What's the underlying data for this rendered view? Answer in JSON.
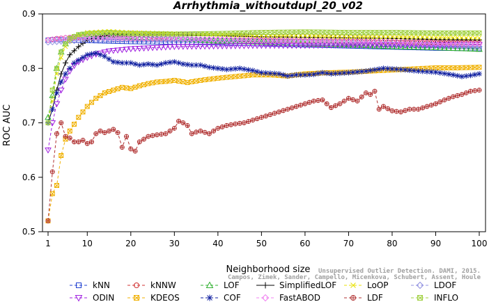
{
  "chart_data": {
    "type": "line",
    "title": "Arrhythmia_withoutdupl_20_v02",
    "xlabel": "Neighborhood size",
    "ylabel": "ROC AUC",
    "xlim": [
      1,
      100
    ],
    "ylim": [
      0.5,
      0.9
    ],
    "xticks": [
      1,
      10,
      20,
      30,
      40,
      50,
      60,
      70,
      80,
      90,
      100
    ],
    "yticks": [
      0.5,
      0.6,
      0.7,
      0.8,
      0.9
    ],
    "legend_position": "bottom",
    "series": [
      {
        "name": "kNN",
        "color": "#2040d0",
        "marker": "square",
        "dash": "4,3",
        "points": [
          [
            1,
            0.852
          ],
          [
            3,
            0.853
          ],
          [
            6,
            0.852
          ],
          [
            10,
            0.851
          ],
          [
            15,
            0.85
          ],
          [
            20,
            0.849
          ],
          [
            30,
            0.848
          ],
          [
            40,
            0.847
          ],
          [
            50,
            0.845
          ],
          [
            60,
            0.843
          ],
          [
            70,
            0.841
          ],
          [
            80,
            0.839
          ],
          [
            90,
            0.837
          ],
          [
            100,
            0.836
          ]
        ]
      },
      {
        "name": "kNNW",
        "color": "#d03030",
        "marker": "circle",
        "dash": "4,3",
        "points": [
          [
            1,
            0.852
          ],
          [
            3,
            0.855
          ],
          [
            6,
            0.857
          ],
          [
            10,
            0.857
          ],
          [
            15,
            0.856
          ],
          [
            20,
            0.855
          ],
          [
            30,
            0.854
          ],
          [
            40,
            0.853
          ],
          [
            50,
            0.852
          ],
          [
            60,
            0.851
          ],
          [
            70,
            0.85
          ],
          [
            80,
            0.849
          ],
          [
            90,
            0.848
          ],
          [
            100,
            0.847
          ]
        ]
      },
      {
        "name": "LOF",
        "color": "#30b030",
        "marker": "triangle",
        "dash": "4,3",
        "points": [
          [
            1,
            0.71
          ],
          [
            2,
            0.75
          ],
          [
            3,
            0.8
          ],
          [
            4,
            0.83
          ],
          [
            5,
            0.845
          ],
          [
            6,
            0.855
          ],
          [
            8,
            0.86
          ],
          [
            10,
            0.862
          ],
          [
            15,
            0.862
          ],
          [
            20,
            0.858
          ],
          [
            30,
            0.855
          ],
          [
            40,
            0.85
          ],
          [
            50,
            0.848
          ],
          [
            60,
            0.845
          ],
          [
            70,
            0.843
          ],
          [
            80,
            0.84
          ],
          [
            90,
            0.838
          ],
          [
            100,
            0.835
          ]
        ]
      },
      {
        "name": "SimplifiedLOF",
        "color": "#000000",
        "marker": "plus",
        "dash": "0",
        "points": [
          [
            1,
            0.7
          ],
          [
            2,
            0.725
          ],
          [
            3,
            0.76
          ],
          [
            4,
            0.79
          ],
          [
            5,
            0.81
          ],
          [
            6,
            0.825
          ],
          [
            8,
            0.84
          ],
          [
            10,
            0.852
          ],
          [
            15,
            0.862
          ],
          [
            20,
            0.864
          ],
          [
            30,
            0.862
          ],
          [
            40,
            0.86
          ],
          [
            50,
            0.858
          ],
          [
            60,
            0.857
          ],
          [
            70,
            0.856
          ],
          [
            80,
            0.855
          ],
          [
            90,
            0.853
          ],
          [
            100,
            0.852
          ]
        ]
      },
      {
        "name": "LoOP",
        "color": "#e8e000",
        "marker": "x",
        "dash": "4,3",
        "points": [
          [
            1,
            0.7
          ],
          [
            2,
            0.74
          ],
          [
            3,
            0.79
          ],
          [
            4,
            0.82
          ],
          [
            5,
            0.84
          ],
          [
            6,
            0.85
          ],
          [
            8,
            0.86
          ],
          [
            10,
            0.866
          ],
          [
            15,
            0.868
          ],
          [
            20,
            0.866
          ],
          [
            30,
            0.864
          ],
          [
            40,
            0.862
          ],
          [
            50,
            0.86
          ],
          [
            60,
            0.86
          ],
          [
            70,
            0.858
          ],
          [
            80,
            0.858
          ],
          [
            90,
            0.857
          ],
          [
            100,
            0.856
          ]
        ]
      },
      {
        "name": "LDOF",
        "color": "#9090e0",
        "marker": "diamond",
        "dash": "4,3",
        "points": [
          [
            1,
            0.848
          ],
          [
            5,
            0.85
          ],
          [
            10,
            0.852
          ],
          [
            20,
            0.853
          ],
          [
            30,
            0.853
          ],
          [
            40,
            0.852
          ],
          [
            50,
            0.85
          ],
          [
            60,
            0.848
          ],
          [
            70,
            0.846
          ],
          [
            80,
            0.844
          ],
          [
            90,
            0.842
          ],
          [
            100,
            0.84
          ]
        ]
      },
      {
        "name": "ODIN",
        "color": "#a020e0",
        "marker": "triangle-down",
        "dash": "4,3",
        "points": [
          [
            1,
            0.65
          ],
          [
            2,
            0.7
          ],
          [
            3,
            0.735
          ],
          [
            4,
            0.76
          ],
          [
            5,
            0.78
          ],
          [
            6,
            0.795
          ],
          [
            7,
            0.805
          ],
          [
            8,
            0.812
          ],
          [
            10,
            0.82
          ],
          [
            12,
            0.826
          ],
          [
            15,
            0.832
          ],
          [
            20,
            0.836
          ],
          [
            25,
            0.838
          ],
          [
            30,
            0.84
          ],
          [
            40,
            0.841
          ],
          [
            50,
            0.842
          ],
          [
            60,
            0.842
          ],
          [
            70,
            0.843
          ],
          [
            80,
            0.843
          ],
          [
            90,
            0.843
          ],
          [
            100,
            0.844
          ]
        ]
      },
      {
        "name": "KDEOS",
        "color": "#f0b000",
        "marker": "square-x",
        "dash": "4,3",
        "points": [
          [
            1,
            0.52
          ],
          [
            2,
            0.57
          ],
          [
            3,
            0.585
          ],
          [
            4,
            0.64
          ],
          [
            5,
            0.67
          ],
          [
            6,
            0.685
          ],
          [
            8,
            0.71
          ],
          [
            10,
            0.73
          ],
          [
            12,
            0.745
          ],
          [
            14,
            0.755
          ],
          [
            16,
            0.76
          ],
          [
            18,
            0.765
          ],
          [
            20,
            0.763
          ],
          [
            22,
            0.768
          ],
          [
            24,
            0.772
          ],
          [
            26,
            0.775
          ],
          [
            28,
            0.776
          ],
          [
            30,
            0.778
          ],
          [
            33,
            0.774
          ],
          [
            36,
            0.778
          ],
          [
            40,
            0.782
          ],
          [
            44,
            0.785
          ],
          [
            48,
            0.788
          ],
          [
            52,
            0.788
          ],
          [
            56,
            0.786
          ],
          [
            60,
            0.79
          ],
          [
            65,
            0.792
          ],
          [
            70,
            0.793
          ],
          [
            75,
            0.795
          ],
          [
            80,
            0.797
          ],
          [
            85,
            0.799
          ],
          [
            90,
            0.801
          ],
          [
            95,
            0.801
          ],
          [
            100,
            0.802
          ]
        ]
      },
      {
        "name": "COF",
        "color": "#1020a0",
        "marker": "star",
        "dash": "4,3",
        "points": [
          [
            1,
            0.7
          ],
          [
            2,
            0.725
          ],
          [
            3,
            0.755
          ],
          [
            4,
            0.775
          ],
          [
            5,
            0.79
          ],
          [
            6,
            0.8
          ],
          [
            7,
            0.81
          ],
          [
            8,
            0.815
          ],
          [
            10,
            0.825
          ],
          [
            12,
            0.828
          ],
          [
            14,
            0.822
          ],
          [
            16,
            0.812
          ],
          [
            18,
            0.81
          ],
          [
            20,
            0.81
          ],
          [
            22,
            0.806
          ],
          [
            24,
            0.808
          ],
          [
            26,
            0.806
          ],
          [
            28,
            0.81
          ],
          [
            30,
            0.812
          ],
          [
            32,
            0.808
          ],
          [
            34,
            0.806
          ],
          [
            36,
            0.806
          ],
          [
            38,
            0.802
          ],
          [
            40,
            0.8
          ],
          [
            42,
            0.798
          ],
          [
            45,
            0.8
          ],
          [
            48,
            0.796
          ],
          [
            50,
            0.792
          ],
          [
            54,
            0.79
          ],
          [
            56,
            0.786
          ],
          [
            58,
            0.788
          ],
          [
            60,
            0.788
          ],
          [
            62,
            0.789
          ],
          [
            64,
            0.792
          ],
          [
            66,
            0.79
          ],
          [
            70,
            0.792
          ],
          [
            74,
            0.795
          ],
          [
            78,
            0.8
          ],
          [
            82,
            0.798
          ],
          [
            86,
            0.795
          ],
          [
            90,
            0.793
          ],
          [
            94,
            0.788
          ],
          [
            96,
            0.785
          ],
          [
            98,
            0.787
          ],
          [
            100,
            0.79
          ]
        ]
      },
      {
        "name": "FastABOD",
        "color": "#f080f0",
        "marker": "diamond",
        "dash": "4,3",
        "points": [
          [
            1,
            0.852
          ],
          [
            5,
            0.856
          ],
          [
            10,
            0.857
          ],
          [
            20,
            0.856
          ],
          [
            30,
            0.855
          ],
          [
            40,
            0.853
          ],
          [
            50,
            0.851
          ],
          [
            60,
            0.85
          ],
          [
            70,
            0.849
          ],
          [
            80,
            0.848
          ],
          [
            90,
            0.846
          ],
          [
            100,
            0.845
          ]
        ]
      },
      {
        "name": "LDF",
        "color": "#b03030",
        "marker": "circle-plus",
        "dash": "4,3",
        "points": [
          [
            1,
            0.52
          ],
          [
            2,
            0.61
          ],
          [
            3,
            0.68
          ],
          [
            4,
            0.7
          ],
          [
            5,
            0.675
          ],
          [
            6,
            0.672
          ],
          [
            7,
            0.665
          ],
          [
            8,
            0.665
          ],
          [
            9,
            0.668
          ],
          [
            10,
            0.662
          ],
          [
            11,
            0.665
          ],
          [
            12,
            0.68
          ],
          [
            13,
            0.685
          ],
          [
            14,
            0.682
          ],
          [
            15,
            0.685
          ],
          [
            16,
            0.688
          ],
          [
            17,
            0.682
          ],
          [
            18,
            0.655
          ],
          [
            19,
            0.675
          ],
          [
            20,
            0.652
          ],
          [
            21,
            0.648
          ],
          [
            22,
            0.665
          ],
          [
            23,
            0.67
          ],
          [
            24,
            0.675
          ],
          [
            26,
            0.678
          ],
          [
            28,
            0.68
          ],
          [
            30,
            0.69
          ],
          [
            31,
            0.703
          ],
          [
            32,
            0.7
          ],
          [
            33,
            0.695
          ],
          [
            34,
            0.68
          ],
          [
            35,
            0.683
          ],
          [
            36,
            0.685
          ],
          [
            38,
            0.68
          ],
          [
            40,
            0.69
          ],
          [
            42,
            0.695
          ],
          [
            44,
            0.698
          ],
          [
            46,
            0.7
          ],
          [
            48,
            0.705
          ],
          [
            50,
            0.71
          ],
          [
            52,
            0.715
          ],
          [
            54,
            0.72
          ],
          [
            56,
            0.725
          ],
          [
            58,
            0.73
          ],
          [
            60,
            0.735
          ],
          [
            62,
            0.74
          ],
          [
            64,
            0.742
          ],
          [
            66,
            0.728
          ],
          [
            68,
            0.735
          ],
          [
            70,
            0.745
          ],
          [
            72,
            0.74
          ],
          [
            74,
            0.755
          ],
          [
            75,
            0.752
          ],
          [
            76,
            0.758
          ],
          [
            77,
            0.725
          ],
          [
            78,
            0.73
          ],
          [
            80,
            0.722
          ],
          [
            82,
            0.72
          ],
          [
            84,
            0.725
          ],
          [
            86,
            0.725
          ],
          [
            88,
            0.73
          ],
          [
            90,
            0.735
          ],
          [
            92,
            0.742
          ],
          [
            94,
            0.748
          ],
          [
            96,
            0.752
          ],
          [
            98,
            0.758
          ],
          [
            100,
            0.76
          ]
        ]
      },
      {
        "name": "INFLO",
        "color": "#a0d040",
        "marker": "square-x",
        "dash": "4,3",
        "points": [
          [
            1,
            0.7
          ],
          [
            2,
            0.76
          ],
          [
            3,
            0.8
          ],
          [
            4,
            0.83
          ],
          [
            5,
            0.845
          ],
          [
            6,
            0.855
          ],
          [
            8,
            0.862
          ],
          [
            10,
            0.864
          ],
          [
            15,
            0.866
          ],
          [
            20,
            0.864
          ],
          [
            30,
            0.863
          ],
          [
            40,
            0.864
          ],
          [
            50,
            0.866
          ],
          [
            60,
            0.867
          ],
          [
            70,
            0.866
          ],
          [
            80,
            0.866
          ],
          [
            90,
            0.865
          ],
          [
            100,
            0.865
          ]
        ]
      }
    ]
  },
  "watermark": {
    "line1": "Unsupervised Outlier Detection. DAMI, 2015.",
    "line2": "Campos, Zimek, Sander, Campello, Micenkova, Schubert, Assent, Houle"
  }
}
